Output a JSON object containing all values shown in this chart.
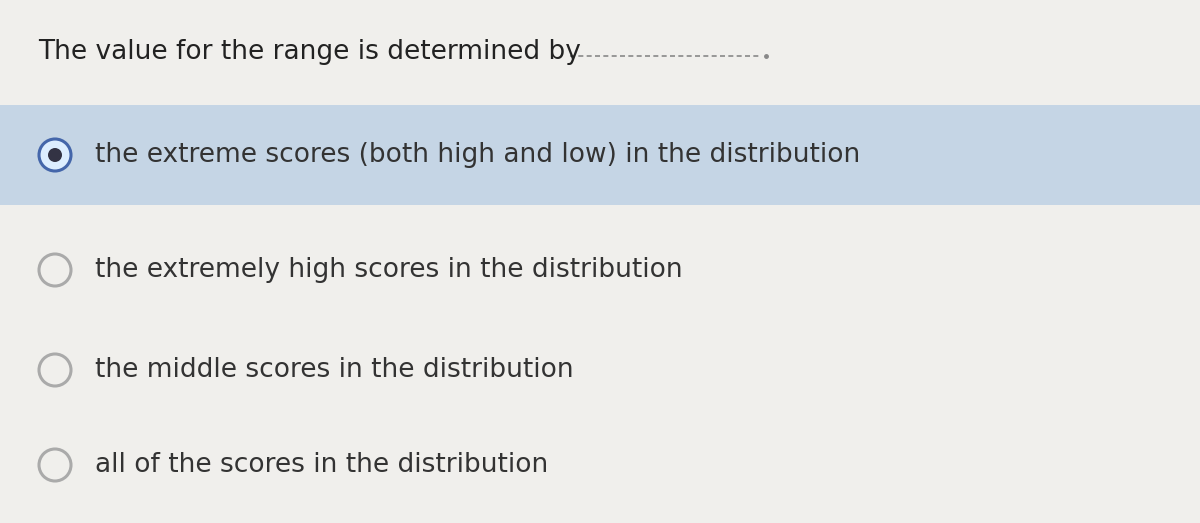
{
  "background_color": "#f0efec",
  "question_text": "The value for the range is determined by",
  "options": [
    "the extreme scores (both high and low) in the distribution",
    "the extremely high scores in the distribution",
    "the middle scores in the distribution",
    "all of the scores in the distribution"
  ],
  "selected_index": 0,
  "selected_bg": "#c5d5e5",
  "option_text_color": "#333333",
  "question_text_color": "#222222",
  "radio_selected_outer_color": "#4466aa",
  "radio_selected_fill": "#333344",
  "radio_unselected_outer_color": "#aaaaaa",
  "radio_unselected_fill": "#f0efec",
  "question_fontsize": 19,
  "option_fontsize": 19,
  "fig_width": 12.0,
  "fig_height": 5.23,
  "dpi": 100
}
